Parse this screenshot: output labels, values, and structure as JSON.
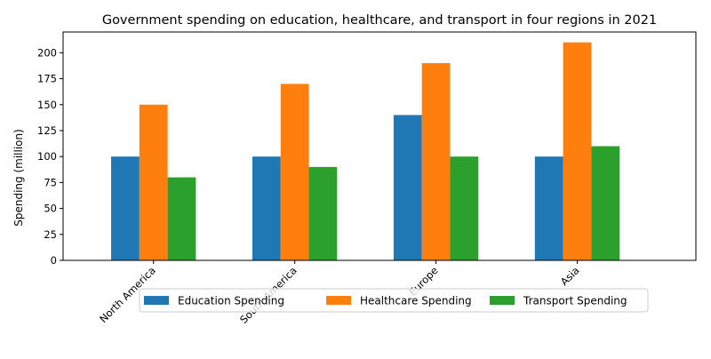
{
  "chart_data": {
    "type": "bar",
    "title": "Government spending on education, healthcare, and transport in four regions in 2021",
    "xlabel": "",
    "ylabel": "Spending (million)",
    "categories": [
      "North America",
      "South America",
      "Europe",
      "Asia"
    ],
    "series": [
      {
        "name": "Education Spending",
        "values": [
          100,
          100,
          140,
          100
        ],
        "color": "#1f77b4"
      },
      {
        "name": "Healthcare Spending",
        "values": [
          150,
          170,
          190,
          210
        ],
        "color": "#ff7f0e"
      },
      {
        "name": "Transport Spending",
        "values": [
          80,
          90,
          100,
          110
        ],
        "color": "#2ca02c"
      }
    ],
    "ylim": [
      0,
      220
    ],
    "yticks": [
      0,
      25,
      50,
      75,
      100,
      125,
      150,
      175,
      200
    ],
    "grid": false,
    "legend": "bottom-center"
  }
}
